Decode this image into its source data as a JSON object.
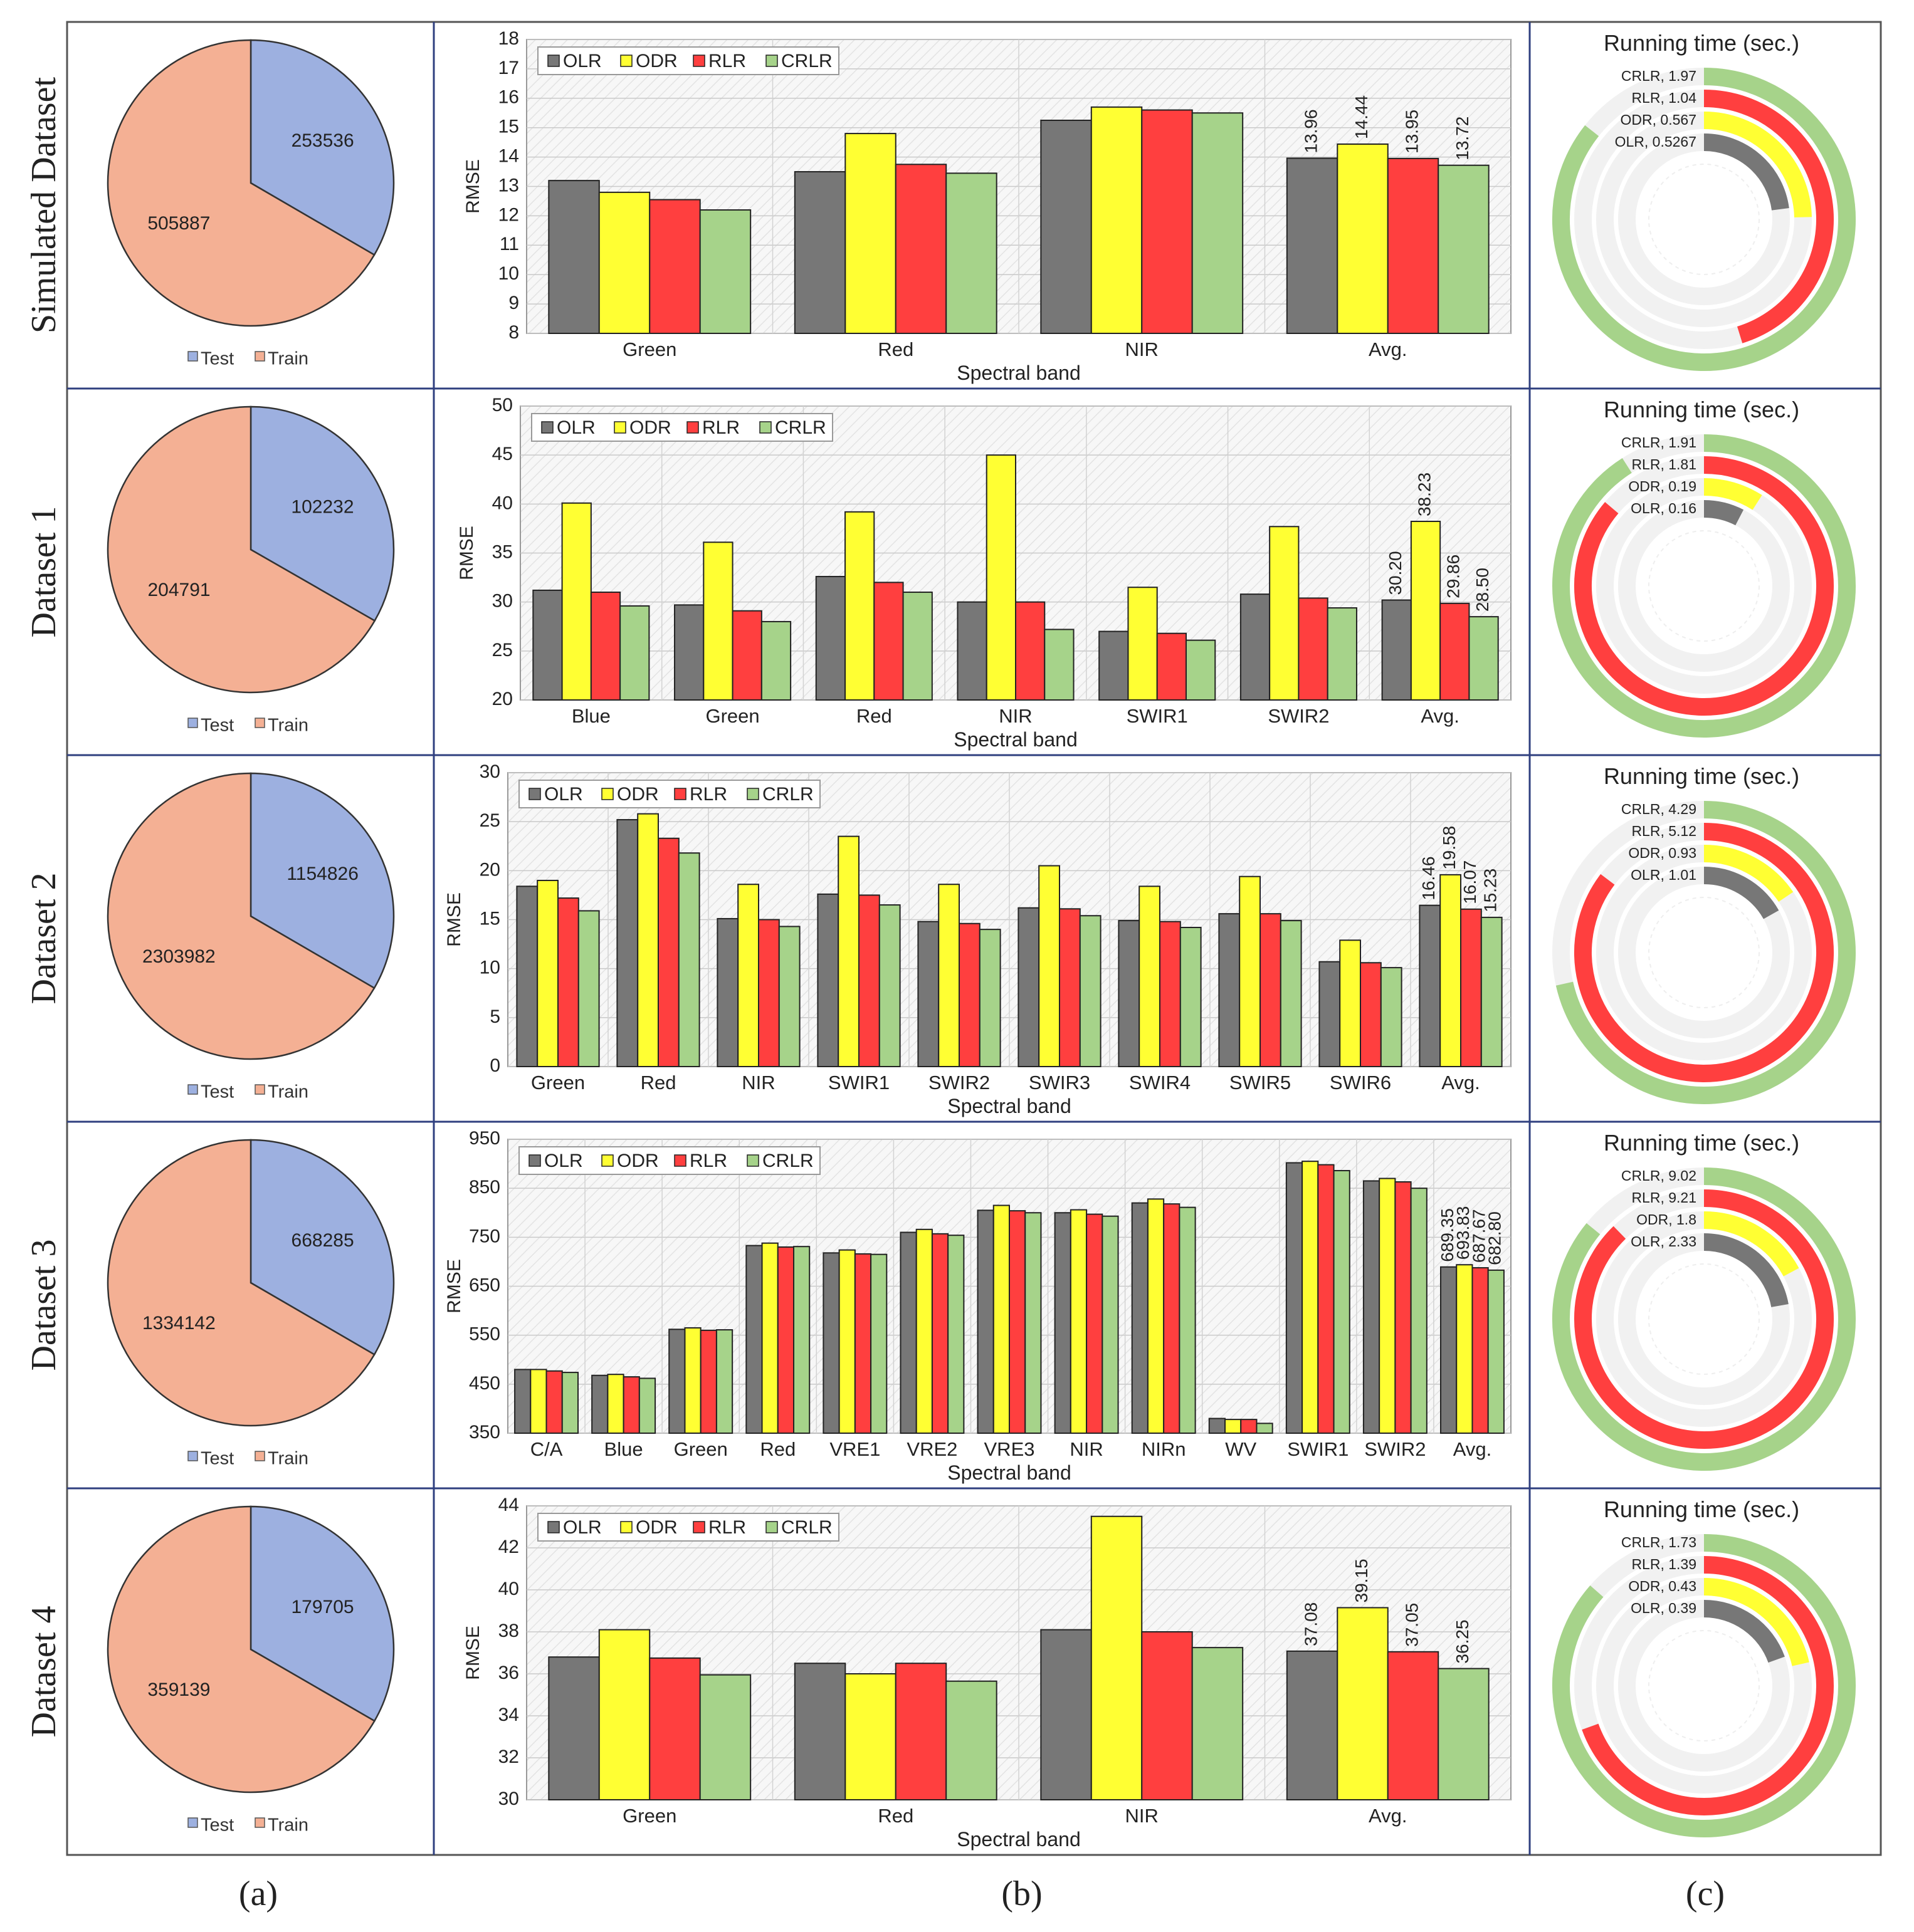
{
  "colors": {
    "OLR": "#777777",
    "ODR": "#ffff33",
    "RLR": "#ff3f3f",
    "CRLR": "#a6d38a",
    "test": "#9db0e0",
    "train": "#f4b094",
    "frame": "#2f3f7f"
  },
  "series_names": [
    "OLR",
    "ODR",
    "RLR",
    "CRLR"
  ],
  "pie_legend": [
    "Test",
    "Train"
  ],
  "panel_letters": [
    "(a)",
    "(b)",
    "(c)"
  ],
  "chart_data": [
    {
      "type": "pie",
      "row_label": "Simulated Dataset",
      "slices": [
        {
          "label": "Test",
          "value": 253536
        },
        {
          "label": "Train",
          "value": 505887
        }
      ]
    },
    {
      "type": "pie",
      "row_label": "Dataset 1",
      "slices": [
        {
          "label": "Test",
          "value": 102232
        },
        {
          "label": "Train",
          "value": 204791
        }
      ]
    },
    {
      "type": "pie",
      "row_label": "Dataset 2",
      "slices": [
        {
          "label": "Test",
          "value": 1154826
        },
        {
          "label": "Train",
          "value": 2303982
        }
      ]
    },
    {
      "type": "pie",
      "row_label": "Dataset 3",
      "slices": [
        {
          "label": "Test",
          "value": 668285
        },
        {
          "label": "Train",
          "value": 1334142
        }
      ]
    },
    {
      "type": "pie",
      "row_label": "Dataset 4",
      "slices": [
        {
          "label": "Test",
          "value": 179705
        },
        {
          "label": "Train",
          "value": 359139
        }
      ]
    },
    {
      "type": "bar",
      "dataset": "Simulated Dataset",
      "xlabel": "Spectral band",
      "ylabel": "RMSE",
      "ylim": [
        8,
        18
      ],
      "ytick_step": 1,
      "categories": [
        "Green",
        "Red",
        "NIR",
        "Avg."
      ],
      "series": [
        {
          "name": "OLR",
          "values": [
            13.2,
            13.5,
            15.25,
            13.96
          ]
        },
        {
          "name": "ODR",
          "values": [
            12.8,
            14.8,
            15.7,
            14.44
          ]
        },
        {
          "name": "RLR",
          "values": [
            12.55,
            13.75,
            15.6,
            13.95
          ]
        },
        {
          "name": "CRLR",
          "values": [
            12.2,
            13.45,
            15.5,
            13.72
          ]
        }
      ],
      "avg_labels": [
        "13.96",
        "14.44",
        "13.95",
        "13.72"
      ],
      "legend": "top-left"
    },
    {
      "type": "bar",
      "dataset": "Dataset 1",
      "xlabel": "Spectral band",
      "ylabel": "RMSE",
      "ylim": [
        20,
        50
      ],
      "ytick_step": 5,
      "categories": [
        "Blue",
        "Green",
        "Red",
        "NIR",
        "SWIR1",
        "SWIR2",
        "Avg."
      ],
      "series": [
        {
          "name": "OLR",
          "values": [
            31.2,
            29.7,
            32.6,
            30.0,
            27.0,
            30.8,
            30.2
          ]
        },
        {
          "name": "ODR",
          "values": [
            40.1,
            36.1,
            39.2,
            45.0,
            31.5,
            37.7,
            38.23
          ]
        },
        {
          "name": "RLR",
          "values": [
            31.0,
            29.1,
            32.0,
            30.0,
            26.8,
            30.4,
            29.86
          ]
        },
        {
          "name": "CRLR",
          "values": [
            29.6,
            28.0,
            31.0,
            27.2,
            26.1,
            29.4,
            28.5
          ]
        }
      ],
      "avg_labels": [
        "30.20",
        "38.23",
        "29.86",
        "28.50"
      ],
      "legend": "top-left"
    },
    {
      "type": "bar",
      "dataset": "Dataset 2",
      "xlabel": "Spectral band",
      "ylabel": "RMSE",
      "ylim": [
        0,
        30
      ],
      "ytick_step": 5,
      "categories": [
        "Green",
        "Red",
        "NIR",
        "SWIR1",
        "SWIR2",
        "SWIR3",
        "SWIR4",
        "SWIR5",
        "SWIR6",
        "Avg."
      ],
      "series": [
        {
          "name": "OLR",
          "values": [
            18.4,
            25.2,
            15.1,
            17.6,
            14.8,
            16.2,
            14.9,
            15.6,
            10.7,
            16.46
          ]
        },
        {
          "name": "ODR",
          "values": [
            19.0,
            25.8,
            18.6,
            23.5,
            18.6,
            20.5,
            18.4,
            19.4,
            12.9,
            19.58
          ]
        },
        {
          "name": "RLR",
          "values": [
            17.2,
            23.3,
            15.0,
            17.5,
            14.6,
            16.1,
            14.8,
            15.6,
            10.6,
            16.07
          ]
        },
        {
          "name": "CRLR",
          "values": [
            15.9,
            21.8,
            14.3,
            16.5,
            14.0,
            15.4,
            14.2,
            14.9,
            10.1,
            15.23
          ]
        }
      ],
      "avg_labels": [
        "16.46",
        "19.58",
        "16.07",
        "15.23"
      ],
      "legend": "top-left"
    },
    {
      "type": "bar",
      "dataset": "Dataset 3",
      "xlabel": "Spectral band",
      "ylabel": "RMSE",
      "ylim": [
        350,
        950
      ],
      "ytick_step": 100,
      "ytick_values": [
        350,
        450,
        550,
        650,
        750,
        850,
        950
      ],
      "categories": [
        "C/A",
        "Blue",
        "Green",
        "Red",
        "VRE1",
        "VRE2",
        "VRE3",
        "NIR",
        "NIRn",
        "WV",
        "SWIR1",
        "SWIR2",
        "Avg."
      ],
      "series": [
        {
          "name": "OLR",
          "values": [
            480,
            468,
            562,
            733,
            718,
            760,
            805,
            800,
            820,
            380,
            902,
            865,
            689.35
          ]
        },
        {
          "name": "ODR",
          "values": [
            480,
            470,
            565,
            738,
            724,
            766,
            815,
            806,
            828,
            378,
            905,
            870,
            693.83
          ]
        },
        {
          "name": "RLR",
          "values": [
            477,
            465,
            560,
            730,
            716,
            757,
            804,
            797,
            818,
            378,
            898,
            863,
            687.67
          ]
        },
        {
          "name": "CRLR",
          "values": [
            474,
            462,
            561,
            731,
            715,
            754,
            800,
            793,
            811,
            370,
            886,
            850,
            682.8
          ]
        }
      ],
      "avg_labels": [
        "689.35",
        "693.83",
        "687.67",
        "682.80"
      ],
      "legend": "top-left"
    },
    {
      "type": "bar",
      "dataset": "Dataset 4",
      "xlabel": "Spectral band",
      "ylabel": "RMSE",
      "ylim": [
        30,
        44
      ],
      "ytick_step": 2,
      "categories": [
        "Green",
        "Red",
        "NIR",
        "Avg."
      ],
      "series": [
        {
          "name": "OLR",
          "values": [
            36.8,
            36.5,
            38.1,
            37.08
          ]
        },
        {
          "name": "ODR",
          "values": [
            38.1,
            36.0,
            43.5,
            39.15
          ]
        },
        {
          "name": "RLR",
          "values": [
            36.75,
            36.5,
            38.0,
            37.05
          ]
        },
        {
          "name": "CRLR",
          "values": [
            35.95,
            35.65,
            37.25,
            36.25
          ]
        }
      ],
      "avg_labels": [
        "37.08",
        "39.15",
        "37.05",
        "36.25"
      ],
      "legend": "top-left"
    },
    {
      "type": "radial-bar",
      "dataset": "Simulated Dataset",
      "title": "Running time (sec.)",
      "max": 2.3,
      "labels": [
        "CRLR, 1.97",
        "RLR, 1.04",
        "ODR, 0.567",
        "OLR, 0.5267"
      ],
      "values": [
        1.97,
        1.04,
        0.567,
        0.5267
      ]
    },
    {
      "type": "radial-bar",
      "dataset": "Dataset 1",
      "title": "Running time (sec.)",
      "max": 2.1,
      "labels": [
        "CRLR, 1.91",
        "RLR, 1.81",
        "ODR, 0.19",
        "OLR, 0.16"
      ],
      "values": [
        1.91,
        1.81,
        0.19,
        0.16
      ]
    },
    {
      "type": "radial-bar",
      "dataset": "Dataset 2",
      "title": "Running time (sec.)",
      "max": 6.0,
      "labels": [
        "CRLR, 4.29",
        "RLR, 5.12",
        "ODR, 0.93",
        "OLR, 1.01"
      ],
      "values": [
        4.29,
        5.12,
        0.93,
        1.01
      ]
    },
    {
      "type": "radial-bar",
      "dataset": "Dataset 3",
      "title": "Running time (sec.)",
      "max": 10.5,
      "labels": [
        "CRLR, 9.02",
        "RLR, 9.21",
        "ODR, 1.8",
        "OLR, 2.33"
      ],
      "values": [
        9.02,
        9.21,
        1.8,
        2.33
      ]
    },
    {
      "type": "radial-bar",
      "dataset": "Dataset 4",
      "title": "Running time (sec.)",
      "max": 2.0,
      "labels": [
        "CRLR, 1.73",
        "RLR, 1.39",
        "ODR, 0.43",
        "OLR, 0.39"
      ],
      "values": [
        1.73,
        1.39,
        0.43,
        0.39
      ]
    }
  ]
}
